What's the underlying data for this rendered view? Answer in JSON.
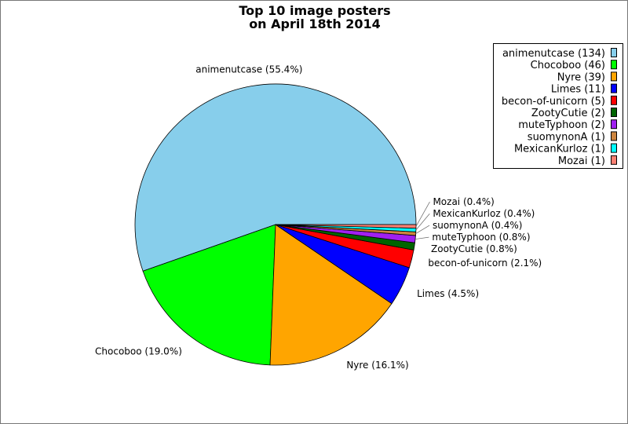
{
  "chart_data": {
    "type": "pie",
    "title": [
      "Top 10 image posters",
      "on April 18th 2014"
    ],
    "start_angle_deg": 0,
    "direction": "counterclockwise",
    "slices": [
      {
        "name": "animenutcase",
        "value": 134,
        "label": "animenutcase (55.4%)",
        "legend": "animenutcase (134)",
        "color": "#87ceeb"
      },
      {
        "name": "Chocoboo",
        "value": 46,
        "label": "Chocoboo (19.0%)",
        "legend": "Chocoboo (46)",
        "color": "#00ff00"
      },
      {
        "name": "Nyre",
        "value": 39,
        "label": "Nyre (16.1%)",
        "legend": "Nyre (39)",
        "color": "#ffa500"
      },
      {
        "name": "Limes",
        "value": 11,
        "label": "Limes (4.5%)",
        "legend": "Limes (11)",
        "color": "#0000ff"
      },
      {
        "name": "becon-of-unicorn",
        "value": 5,
        "label": "becon-of-unicorn (2.1%)",
        "legend": "becon-of-unicorn (5)",
        "color": "#ff0000"
      },
      {
        "name": "ZootyCutie",
        "value": 2,
        "label": "ZootyCutie (0.8%)",
        "legend": "ZootyCutie (2)",
        "color": "#006400"
      },
      {
        "name": "muteTyphoon",
        "value": 2,
        "label": "muteTyphoon (0.8%)",
        "legend": "muteTyphoon (2)",
        "color": "#a020f0"
      },
      {
        "name": "suomynonA",
        "value": 1,
        "label": "suomynonA (0.4%)",
        "legend": "suomynonA (1)",
        "color": "#cd853f"
      },
      {
        "name": "MexicanKurloz",
        "value": 1,
        "label": "MexicanKurloz (0.4%)",
        "legend": "MexicanKurloz (1)",
        "color": "#00ffff"
      },
      {
        "name": "Mozai",
        "value": 1,
        "label": "Mozai (0.4%)",
        "legend": "Mozai (1)",
        "color": "#fa8072"
      }
    ],
    "legend_position": "top-right"
  }
}
